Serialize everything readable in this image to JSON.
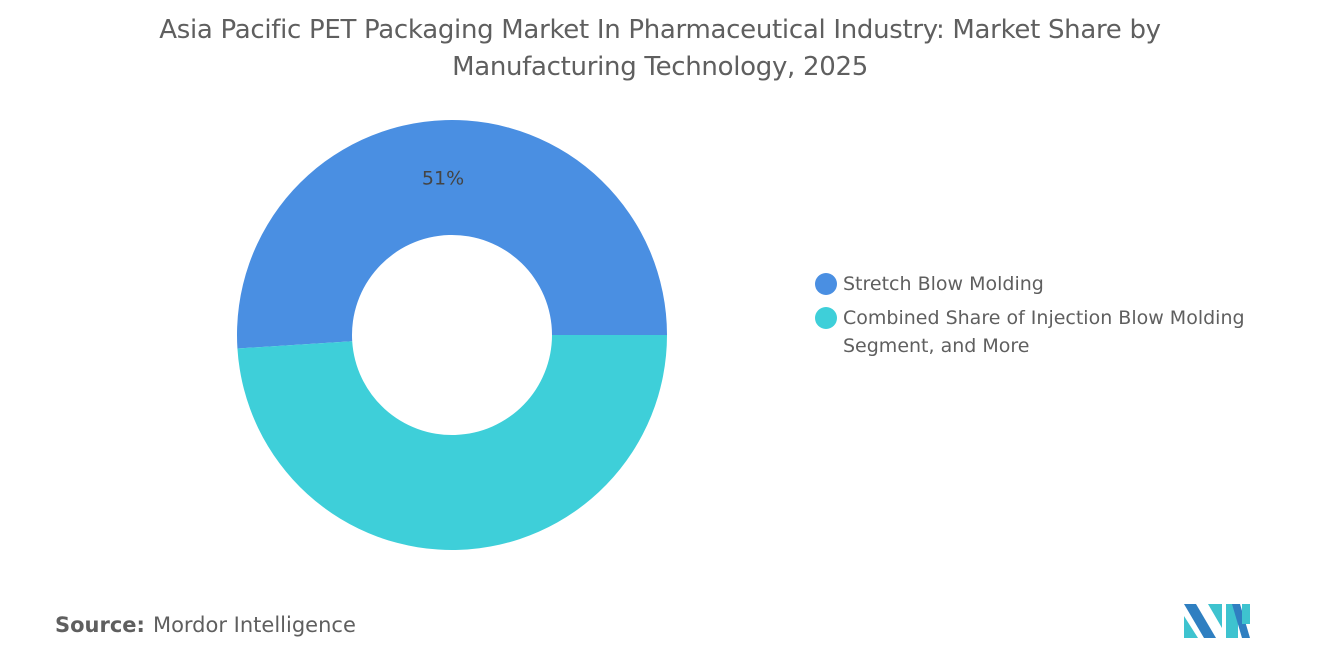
{
  "title": "Asia Pacific PET Packaging Market In Pharmaceutical Industry: Market Share by Manufacturing Technology, 2025",
  "source_label": "Source:",
  "source_value": "Mordor Intelligence",
  "logo_text": "Mordor Intelligence",
  "chart_data": {
    "type": "pie",
    "style": "donut",
    "title": "Asia Pacific PET Packaging Market In Pharmaceutical Industry: Market Share by Manufacturing Technology, 2025",
    "legend_position": "right",
    "slices": [
      {
        "name": "Stretch Blow Molding",
        "value": 51,
        "label": "51%",
        "color": "#4a8fe2"
      },
      {
        "name": "Combined Share of Injection Blow Molding Segment, and More",
        "value": 49,
        "label": "",
        "color": "#3ecfd9"
      }
    ]
  }
}
